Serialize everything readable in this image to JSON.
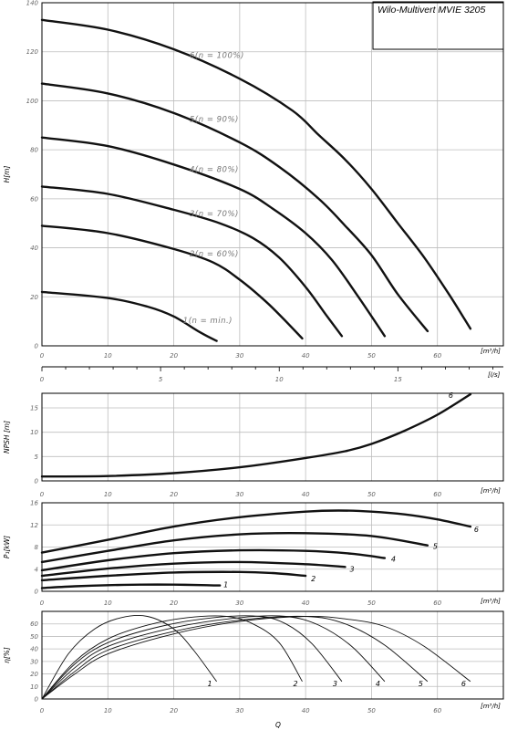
{
  "title": "Wilo-Multivert MVIE 3205",
  "x_tick_labels": [
    "0",
    "10",
    "20",
    "30",
    "40",
    "50",
    "60"
  ],
  "x_unit": "[m³/h]",
  "x_bottom_label": "Q",
  "ls_tick_labels": [
    "0",
    "5",
    "10",
    "15"
  ],
  "ls_unit": "[l/s]",
  "chart_data": [
    {
      "type": "line",
      "panel": "head",
      "ylabel": "H[m]",
      "xlabel": "[m³/h]",
      "xlim": [
        0,
        70
      ],
      "ylim": [
        0,
        140
      ],
      "yticks": [
        0,
        20,
        40,
        60,
        80,
        100,
        120,
        140
      ],
      "grid": true,
      "series": [
        {
          "name": "1(n = min.)",
          "x": [
            0,
            10,
            16,
            20,
            24,
            26.5
          ],
          "y": [
            22,
            19.5,
            16,
            12,
            5.5,
            2
          ]
        },
        {
          "name": "2(n = 60%)",
          "x": [
            0,
            10,
            20,
            26,
            30,
            34,
            37,
            39.5
          ],
          "y": [
            49,
            46,
            39.5,
            34,
            27,
            18,
            10,
            3
          ]
        },
        {
          "name": "3(n = 70%)",
          "x": [
            0,
            10,
            20,
            27,
            32,
            36,
            40,
            43,
            45.5
          ],
          "y": [
            65,
            62,
            55.5,
            50,
            44,
            36,
            24,
            13,
            4
          ]
        },
        {
          "name": "4(n = 80%)",
          "x": [
            0,
            10,
            20,
            30,
            35,
            40,
            44,
            48,
            52
          ],
          "y": [
            85,
            81.5,
            74,
            64,
            56,
            46,
            35,
            20,
            4
          ]
        },
        {
          "name": "5(n = 90%)",
          "x": [
            0,
            10,
            20,
            30,
            36,
            42,
            46,
            50,
            54,
            58.5
          ],
          "y": [
            107,
            103,
            95,
            83,
            73,
            60,
            49,
            37,
            21,
            6
          ]
        },
        {
          "name": "6(n = 100%)",
          "x": [
            0,
            10,
            20,
            30,
            38,
            42,
            46,
            50,
            54,
            58,
            62,
            65
          ],
          "y": [
            133,
            129,
            121,
            109,
            96,
            86,
            76,
            64,
            50,
            36,
            20,
            7
          ]
        }
      ]
    },
    {
      "type": "line",
      "panel": "npsh",
      "ylabel": "NPSH [m]",
      "xlabel": "[m³/h]",
      "xlim": [
        0,
        70
      ],
      "ylim": [
        0,
        18
      ],
      "yticks": [
        0,
        5,
        10,
        15
      ],
      "grid": true,
      "series": [
        {
          "name": "6",
          "x": [
            0,
            10,
            20,
            30,
            40,
            46,
            50,
            55,
            60,
            65
          ],
          "y": [
            0.9,
            1.0,
            1.6,
            2.8,
            4.7,
            6.1,
            7.6,
            10.3,
            13.6,
            17.8
          ]
        }
      ]
    },
    {
      "type": "line",
      "panel": "power",
      "ylabel": "P₁[kW]",
      "xlabel": "[m³/h]",
      "xlim": [
        0,
        70
      ],
      "ylim": [
        0,
        16
      ],
      "yticks": [
        0,
        4,
        8,
        12,
        16
      ],
      "grid": true,
      "series": [
        {
          "name": "1",
          "x": [
            0,
            5,
            10,
            15,
            20,
            25,
            27
          ],
          "y": [
            0.6,
            0.9,
            1.1,
            1.2,
            1.2,
            1.1,
            1.05
          ]
        },
        {
          "name": "2",
          "x": [
            0,
            10,
            20,
            30,
            35,
            40
          ],
          "y": [
            2.0,
            2.8,
            3.4,
            3.5,
            3.3,
            2.8
          ]
        },
        {
          "name": "3",
          "x": [
            0,
            10,
            20,
            30,
            40,
            46
          ],
          "y": [
            2.8,
            4.1,
            5.0,
            5.3,
            4.9,
            4.4
          ]
        },
        {
          "name": "4",
          "x": [
            0,
            10,
            20,
            30,
            40,
            47,
            52
          ],
          "y": [
            3.8,
            5.6,
            6.9,
            7.4,
            7.3,
            6.8,
            6.0
          ]
        },
        {
          "name": "5",
          "x": [
            0,
            10,
            20,
            30,
            40,
            50,
            58.5
          ],
          "y": [
            5.3,
            7.3,
            9.2,
            10.3,
            10.5,
            10.0,
            8.3
          ]
        },
        {
          "name": "6",
          "x": [
            0,
            10,
            20,
            30,
            40,
            45,
            50,
            55,
            60,
            65
          ],
          "y": [
            7.0,
            9.3,
            11.7,
            13.4,
            14.4,
            14.6,
            14.4,
            13.9,
            13.0,
            11.7
          ]
        }
      ]
    },
    {
      "type": "line",
      "panel": "efficiency",
      "ylabel": "η[%]",
      "xlabel": "Q",
      "xlim": [
        0,
        70
      ],
      "ylim": [
        0,
        70
      ],
      "yticks": [
        0,
        10,
        20,
        30,
        40,
        50,
        60
      ],
      "grid": true,
      "series": [
        {
          "name": "1",
          "x": [
            0,
            4,
            8,
            12,
            16,
            20,
            23,
            26.5
          ],
          "y": [
            0,
            36,
            56,
            65,
            66,
            56,
            39,
            14
          ]
        },
        {
          "name": "2",
          "x": [
            0,
            5,
            10,
            16,
            22,
            28,
            32,
            36,
            39.5
          ],
          "y": [
            0,
            30,
            48,
            59,
            65,
            66,
            60,
            45,
            14
          ]
        },
        {
          "name": "3",
          "x": [
            0,
            5,
            10,
            18,
            26,
            33,
            37,
            41,
            45.5
          ],
          "y": [
            0,
            28,
            45,
            58,
            65,
            66,
            60,
            44,
            14
          ]
        },
        {
          "name": "4",
          "x": [
            0,
            5,
            10,
            20,
            30,
            37,
            42,
            47,
            52
          ],
          "y": [
            0,
            25,
            42,
            57,
            65,
            66,
            59,
            42,
            14
          ]
        },
        {
          "name": "5",
          "x": [
            0,
            5,
            10,
            20,
            30,
            40,
            46,
            52,
            58.5
          ],
          "y": [
            0,
            22,
            39,
            54,
            63,
            66,
            60,
            43,
            14
          ]
        },
        {
          "name": "6",
          "x": [
            0,
            5,
            10,
            20,
            30,
            40,
            46,
            52,
            58,
            65
          ],
          "y": [
            0,
            20,
            36,
            52,
            62,
            66,
            64,
            58,
            42,
            14
          ]
        }
      ]
    }
  ]
}
